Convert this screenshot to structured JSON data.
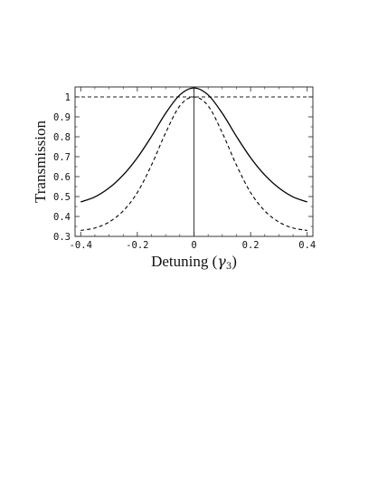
{
  "chart_data": {
    "type": "line",
    "title": "",
    "xlabel": {
      "text": "Detuning (",
      "symbol": "γ",
      "subscript": "3",
      "suffix": ")"
    },
    "ylabel": "Transmission",
    "xlim": [
      -0.42,
      0.42
    ],
    "ylim": [
      0.3,
      1.05
    ],
    "x_ticks": [
      -0.4,
      -0.2,
      0,
      0.2,
      0.4
    ],
    "x_tick_labels": [
      "-0.4",
      "-0.2",
      "0",
      "0.2",
      "0.4"
    ],
    "y_ticks": [
      0.3,
      0.4,
      0.5,
      0.6,
      0.7,
      0.8,
      0.9,
      1.0
    ],
    "y_tick_labels": [
      "0.3",
      "0.4",
      "0.5",
      "0.6",
      "0.7",
      "0.8",
      "0.9",
      "1"
    ],
    "grid": false,
    "legend": "none",
    "frame": "box",
    "reference_lines": [
      {
        "orientation": "horizontal",
        "value": 1.0,
        "style": "dashed"
      },
      {
        "orientation": "vertical",
        "value": 0,
        "style": "solid"
      }
    ],
    "series": [
      {
        "style": "solid",
        "color": "#000000",
        "x": [
          -0.4,
          -0.35,
          -0.3,
          -0.25,
          -0.2,
          -0.15,
          -0.1,
          -0.05,
          0,
          0.05,
          0.1,
          0.15,
          0.2,
          0.25,
          0.3,
          0.35,
          0.4
        ],
        "y": [
          0.473,
          0.498,
          0.543,
          0.608,
          0.695,
          0.802,
          0.918,
          1.01,
          1.045,
          1.01,
          0.918,
          0.802,
          0.695,
          0.608,
          0.543,
          0.498,
          0.473
        ]
      },
      {
        "style": "dashed",
        "color": "#000000",
        "x": [
          -0.4,
          -0.35,
          -0.3,
          -0.25,
          -0.2,
          -0.15,
          -0.1,
          -0.05,
          0,
          0.05,
          0.1,
          0.15,
          0.2,
          0.25,
          0.3,
          0.35,
          0.4
        ],
        "y": [
          0.33,
          0.342,
          0.372,
          0.428,
          0.52,
          0.658,
          0.82,
          0.955,
          1.0,
          0.955,
          0.82,
          0.658,
          0.52,
          0.428,
          0.372,
          0.342,
          0.33
        ]
      }
    ]
  }
}
